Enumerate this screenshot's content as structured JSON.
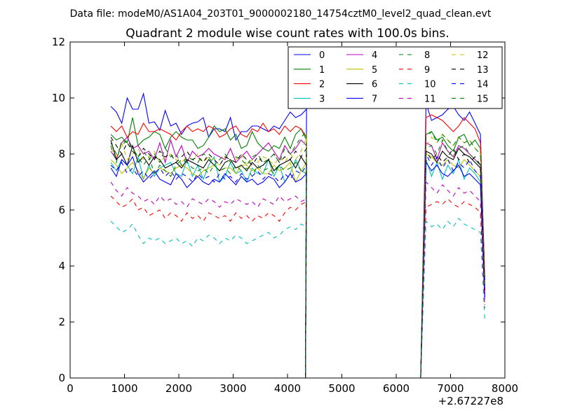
{
  "chart_data": {
    "type": "line",
    "suptitle": "Data file: modeM0/AS1A04_203T01_9000002180_14754cztM0_level2_quad_clean.evt",
    "title": "Quadrant 2 module wise count rates with 100.0s bins.",
    "xlabel": "",
    "ylabel": "",
    "x_offset_label": "+2.67227e8",
    "xlim": [
      0,
      8000
    ],
    "ylim": [
      0,
      12
    ],
    "xticks": [
      0,
      1000,
      2000,
      3000,
      4000,
      5000,
      6000,
      7000,
      8000
    ],
    "yticks": [
      0,
      2,
      4,
      6,
      8,
      10,
      12
    ],
    "xtick_labels": [
      "0",
      "1000",
      "2000",
      "3000",
      "4000",
      "5000",
      "6000",
      "7000",
      "8000"
    ],
    "ytick_labels": [
      "0",
      "2",
      "4",
      "6",
      "8",
      "10",
      "12"
    ],
    "grid": false,
    "legend_position": "top-right",
    "legend_columns": 4,
    "x_first_segment": {
      "start": 750,
      "step": 100,
      "count": 37
    },
    "gap_points": [
      4330,
      4350,
      6450
    ],
    "x_second_segment": {
      "start": 6550,
      "step": 100,
      "count": 11
    },
    "tail_x": 7630,
    "series": [
      {
        "name": "0",
        "color": "#0000ff",
        "style": "solid",
        "seg1": [
          9.7,
          9.5,
          9.1,
          10.0,
          9.6,
          9.6,
          10.15,
          9.1,
          9.15,
          8.85,
          9.55,
          9.0,
          9.1,
          8.7,
          9.0,
          9.1,
          9.15,
          9.3,
          8.6,
          8.9,
          8.9,
          8.8,
          9.3,
          8.5,
          8.8,
          8.8,
          9.0,
          9.0,
          8.9,
          8.8,
          9.0,
          8.9,
          9.2,
          9.5,
          9.3,
          9.4,
          9.6
        ],
        "seg2": [
          9.8,
          9.2,
          9.3,
          9.4,
          9.6,
          9.7,
          9.4,
          9.2,
          9.5,
          9.1,
          8.7
        ],
        "tail": 3.5
      },
      {
        "name": "1",
        "color": "#008000",
        "style": "solid",
        "seg1": [
          8.7,
          8.5,
          8.6,
          8.4,
          9.3,
          8.3,
          8.5,
          8.6,
          8.8,
          8.7,
          8.2,
          8.6,
          8.8,
          8.6,
          8.5,
          8.5,
          8.2,
          8.3,
          8.6,
          9.0,
          8.8,
          8.9,
          8.5,
          8.7,
          8.2,
          8.3,
          8.8,
          8.4,
          8.2,
          8.1,
          8.3,
          8.2,
          8.6,
          8.2,
          8.7,
          8.9,
          8.5
        ],
        "seg2": [
          8.7,
          8.8,
          8.5,
          8.6,
          8.3,
          8.1,
          8.6,
          8.7,
          8.3,
          8.5,
          8.2
        ],
        "tail": 3.0
      },
      {
        "name": "2",
        "color": "#ff0000",
        "style": "solid",
        "seg1": [
          9.0,
          8.8,
          9.0,
          8.6,
          8.8,
          8.7,
          9.1,
          8.8,
          8.8,
          8.9,
          8.8,
          8.7,
          8.5,
          8.8,
          9.0,
          8.8,
          8.9,
          8.8,
          9.0,
          8.9,
          8.6,
          8.7,
          8.9,
          9.0,
          8.7,
          8.6,
          8.9,
          8.8,
          9.1,
          8.8,
          8.9,
          8.7,
          9.0,
          8.8,
          9.0,
          8.9,
          8.6
        ],
        "seg2": [
          9.3,
          9.4,
          9.3,
          9.2,
          9.0,
          8.8,
          9.0,
          9.3,
          9.1,
          8.9,
          8.4
        ],
        "tail": 3.6
      },
      {
        "name": "3",
        "color": "#00bfbf",
        "style": "solid",
        "seg1": [
          7.7,
          7.4,
          7.8,
          7.6,
          7.3,
          7.9,
          7.1,
          7.6,
          7.2,
          7.5,
          7.6,
          7.7,
          7.3,
          7.2,
          7.8,
          7.2,
          7.6,
          7.1,
          7.6,
          7.9,
          7.0,
          7.2,
          7.7,
          7.3,
          7.4,
          7.0,
          7.5,
          7.3,
          7.3,
          7.8,
          7.2,
          7.6,
          7.0,
          7.3,
          7.8,
          7.4,
          7.3
        ],
        "seg2": [
          7.8,
          7.2,
          7.7,
          7.1,
          7.6,
          7.3,
          7.8,
          7.1,
          7.5,
          7.3,
          7.0
        ],
        "tail": 2.8
      },
      {
        "name": "4",
        "color": "#bf00bf",
        "style": "solid",
        "seg1": [
          8.1,
          7.8,
          8.4,
          8.6,
          8.2,
          8.3,
          8.0,
          8.1,
          7.8,
          8.4,
          7.7,
          8.5,
          7.9,
          8.3,
          7.7,
          8.1,
          7.9,
          8.0,
          8.2,
          8.0,
          7.9,
          7.8,
          8.2,
          7.7,
          7.9,
          8.1,
          7.8,
          8.0,
          8.2,
          8.4,
          8.1,
          7.8,
          8.3,
          8.0,
          8.2,
          8.5,
          8.3
        ],
        "seg2": [
          8.4,
          8.3,
          7.8,
          8.4,
          8.1,
          7.9,
          8.3,
          8.2,
          8.0,
          7.8,
          7.6
        ],
        "tail": 3.1
      },
      {
        "name": "5",
        "color": "#bfbf00",
        "style": "solid",
        "seg1": [
          7.8,
          7.6,
          7.3,
          7.5,
          7.7,
          7.4,
          7.1,
          7.5,
          7.3,
          7.5,
          7.4,
          7.3,
          7.5,
          7.6,
          7.5,
          7.3,
          7.2,
          7.4,
          7.5,
          7.6,
          7.4,
          7.5,
          7.5,
          7.3,
          7.6,
          7.6,
          7.4,
          7.5,
          7.3,
          7.3,
          7.6,
          7.4,
          7.5,
          7.7,
          7.0,
          7.4,
          7.7
        ],
        "seg2": [
          8.0,
          7.9,
          7.7,
          7.6,
          7.8,
          7.6,
          7.5,
          7.8,
          7.6,
          7.4,
          7.2
        ],
        "tail": 3.0
      },
      {
        "name": "6",
        "color": "#000000",
        "style": "solid",
        "seg1": [
          8.5,
          7.8,
          8.0,
          7.6,
          8.3,
          7.7,
          7.9,
          7.6,
          7.9,
          7.8,
          7.5,
          7.6,
          7.7,
          7.5,
          7.8,
          7.7,
          7.6,
          7.5,
          7.8,
          7.6,
          7.4,
          7.7,
          7.8,
          7.5,
          7.6,
          7.4,
          7.7,
          7.5,
          7.6,
          7.8,
          7.4,
          7.6,
          7.7,
          7.8,
          7.5,
          7.9,
          7.6
        ],
        "seg2": [
          8.1,
          8.0,
          7.7,
          8.1,
          7.9,
          7.8,
          8.2,
          8.0,
          7.9,
          7.7,
          7.5
        ],
        "tail": 3.3
      },
      {
        "name": "7",
        "color": "#0000ff",
        "style": "solid",
        "seg1": [
          7.5,
          7.2,
          7.8,
          7.6,
          7.9,
          7.3,
          7.0,
          7.2,
          7.4,
          7.1,
          7.0,
          6.9,
          7.3,
          7.1,
          6.8,
          7.0,
          7.2,
          7.0,
          6.9,
          7.1,
          7.0,
          7.3,
          7.1,
          6.9,
          7.2,
          7.0,
          7.1,
          6.9,
          7.0,
          7.2,
          7.1,
          6.8,
          7.0,
          7.3,
          7.0,
          7.1,
          7.3
        ],
        "seg2": [
          7.7,
          7.4,
          7.6,
          7.3,
          7.2,
          7.4,
          7.6,
          7.2,
          7.3,
          7.1,
          6.9
        ],
        "tail": 2.9
      },
      {
        "name": "8",
        "color": "#008000",
        "style": "dashed",
        "seg1": [
          8.3,
          7.7,
          8.5,
          8.4,
          8.2,
          7.9,
          7.6,
          7.9,
          7.3,
          7.6,
          7.4,
          7.2,
          7.6,
          7.8,
          7.7,
          7.5,
          7.4,
          7.5,
          7.3,
          7.6,
          7.4,
          7.5,
          7.3,
          7.6,
          7.4,
          7.5,
          7.2,
          7.6,
          7.4,
          7.5,
          7.3,
          7.6,
          7.4,
          7.5,
          7.7,
          7.4,
          7.3
        ],
        "seg2": [
          8.2,
          8.3,
          8.0,
          8.5,
          8.1,
          7.9,
          8.2,
          8.3,
          8.0,
          7.8,
          7.6
        ],
        "tail": 3.0
      },
      {
        "name": "9",
        "color": "#ff0000",
        "style": "dashed",
        "seg1": [
          6.5,
          6.3,
          6.1,
          6.2,
          6.4,
          6.0,
          6.1,
          5.8,
          5.9,
          6.0,
          5.7,
          5.9,
          5.8,
          5.6,
          5.9,
          5.7,
          5.8,
          5.6,
          5.9,
          5.8,
          5.7,
          5.8,
          5.6,
          5.9,
          5.7,
          5.8,
          5.6,
          5.8,
          5.7,
          5.9,
          5.8,
          5.6,
          5.9,
          6.1,
          6.0,
          6.2,
          6.3
        ],
        "seg2": [
          6.1,
          6.2,
          6.3,
          6.2,
          6.4,
          6.2,
          6.1,
          6.3,
          6.2,
          6.1,
          5.9
        ],
        "tail": 2.5
      },
      {
        "name": "10",
        "color": "#00bfbf",
        "style": "dashed",
        "seg1": [
          5.6,
          5.4,
          5.2,
          5.3,
          5.5,
          5.1,
          4.8,
          5.0,
          4.9,
          5.0,
          4.8,
          4.9,
          5.0,
          4.8,
          4.9,
          4.7,
          5.0,
          4.9,
          5.1,
          5.0,
          4.8,
          5.0,
          4.9,
          5.1,
          5.0,
          4.8,
          4.9,
          5.0,
          5.1,
          5.2,
          5.0,
          5.1,
          5.3,
          5.4,
          5.3,
          5.5,
          5.4
        ],
        "seg2": [
          5.6,
          5.4,
          5.5,
          5.3,
          5.6,
          5.4,
          5.7,
          5.5,
          5.4,
          5.3,
          5.2
        ],
        "tail": 2.1
      },
      {
        "name": "11",
        "color": "#bf00bf",
        "style": "dashed",
        "seg1": [
          7.0,
          6.7,
          6.5,
          6.8,
          6.6,
          6.5,
          6.3,
          6.4,
          6.2,
          6.5,
          6.3,
          6.4,
          6.2,
          6.3,
          6.1,
          6.4,
          6.3,
          6.2,
          6.4,
          6.3,
          6.1,
          6.3,
          6.2,
          6.4,
          6.3,
          6.2,
          6.3,
          6.1,
          6.4,
          6.3,
          6.2,
          6.5,
          6.3,
          6.4,
          6.5,
          6.3,
          6.4
        ],
        "seg2": [
          7.0,
          6.8,
          6.6,
          6.9,
          6.7,
          6.5,
          6.8,
          6.6,
          6.7,
          6.5,
          6.3
        ],
        "tail": 2.6
      },
      {
        "name": "12",
        "color": "#bfbf00",
        "style": "dashed",
        "seg1": [
          8.2,
          7.9,
          8.4,
          7.8,
          8.0,
          8.2,
          7.8,
          7.9,
          8.1,
          7.7,
          7.9,
          8.0,
          7.8,
          7.7,
          7.9,
          7.8,
          8.0,
          7.7,
          7.9,
          7.8,
          7.6,
          7.9,
          7.7,
          7.8,
          8.0,
          7.6,
          7.8,
          7.7,
          7.9,
          7.8,
          7.6,
          7.9,
          7.7,
          8.0,
          7.8,
          8.1,
          8.6
        ],
        "seg2": [
          8.3,
          8.6,
          8.4,
          8.7,
          8.5,
          8.3,
          8.6,
          8.4,
          8.5,
          8.2,
          8.0
        ],
        "tail": 3.2
      },
      {
        "name": "13",
        "color": "#000000",
        "style": "dashed",
        "seg1": [
          8.6,
          8.3,
          8.0,
          8.4,
          8.1,
          7.9,
          8.2,
          8.0,
          7.8,
          8.1,
          7.9,
          8.0,
          7.7,
          7.9,
          8.1,
          7.8,
          7.9,
          7.7,
          8.0,
          7.8,
          7.6,
          7.9,
          7.8,
          7.7,
          8.0,
          7.8,
          7.6,
          7.9,
          7.7,
          7.8,
          8.0,
          7.7,
          7.9,
          7.8,
          8.1,
          7.9,
          8.2
        ],
        "seg2": [
          8.1,
          7.8,
          8.0,
          7.7,
          7.9,
          8.2,
          7.8,
          8.0,
          7.7,
          7.9,
          7.6
        ],
        "tail": 3.1
      },
      {
        "name": "14",
        "color": "#0000ff",
        "style": "dashed",
        "seg1": [
          7.6,
          7.4,
          7.7,
          7.3,
          7.5,
          7.2,
          7.4,
          7.1,
          7.3,
          7.5,
          7.2,
          7.4,
          7.1,
          7.3,
          7.2,
          7.0,
          7.3,
          7.1,
          7.2,
          7.0,
          7.3,
          7.1,
          7.2,
          7.0,
          7.3,
          7.1,
          7.2,
          7.4,
          7.1,
          7.3,
          7.2,
          7.0,
          7.3,
          7.1,
          7.4,
          7.3,
          7.6
        ],
        "seg2": [
          8.0,
          7.6,
          7.9,
          7.5,
          7.8,
          7.4,
          7.7,
          7.5,
          7.8,
          7.4,
          7.2
        ],
        "tail": 2.8
      },
      {
        "name": "15",
        "color": "#008000",
        "style": "dashed",
        "seg1": [
          8.4,
          8.0,
          8.3,
          8.5,
          8.2,
          7.9,
          8.1,
          7.8,
          8.0,
          7.7,
          8.2,
          7.9,
          8.0,
          7.6,
          7.9,
          7.8,
          7.7,
          8.0,
          7.9,
          7.6,
          7.8,
          8.0,
          7.7,
          7.9,
          7.8,
          7.6,
          7.9,
          8.0,
          7.7,
          7.8,
          8.0,
          7.7,
          8.2,
          8.0,
          8.3,
          8.6,
          8.8
        ],
        "seg2": [
          8.6,
          8.8,
          8.4,
          8.7,
          8.5,
          8.3,
          8.6,
          8.4,
          8.5,
          8.2,
          8.0
        ],
        "tail": 3.3
      }
    ]
  }
}
